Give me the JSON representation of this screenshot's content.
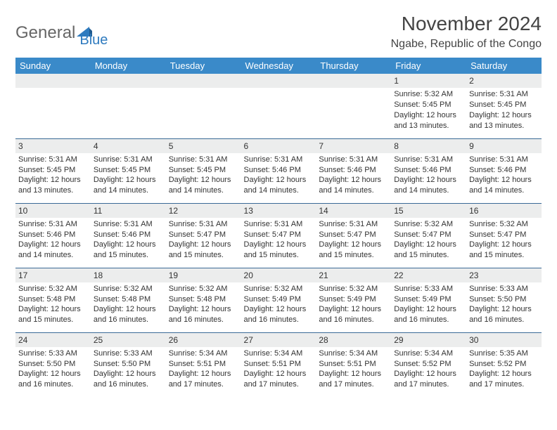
{
  "brand": {
    "part1": "General",
    "part2": "Blue"
  },
  "title": "November 2024",
  "location": "Ngabe, Republic of the Congo",
  "colors": {
    "header_bg": "#3a8ac9",
    "header_text": "#ffffff",
    "row_divider": "#3a6a96",
    "daynum_bg": "#eceded",
    "text": "#333333",
    "logo_blue": "#2f7bbf",
    "logo_gray": "#666666",
    "background": "#ffffff"
  },
  "typography": {
    "month_title_fontsize": 28,
    "location_fontsize": 16,
    "weekday_fontsize": 13,
    "body_fontsize": 11
  },
  "weekdays": [
    "Sunday",
    "Monday",
    "Tuesday",
    "Wednesday",
    "Thursday",
    "Friday",
    "Saturday"
  ],
  "weeks": [
    [
      null,
      null,
      null,
      null,
      null,
      {
        "n": "1",
        "sunrise": "Sunrise: 5:32 AM",
        "sunset": "Sunset: 5:45 PM",
        "daylight": "Daylight: 12 hours and 13 minutes."
      },
      {
        "n": "2",
        "sunrise": "Sunrise: 5:31 AM",
        "sunset": "Sunset: 5:45 PM",
        "daylight": "Daylight: 12 hours and 13 minutes."
      }
    ],
    [
      {
        "n": "3",
        "sunrise": "Sunrise: 5:31 AM",
        "sunset": "Sunset: 5:45 PM",
        "daylight": "Daylight: 12 hours and 13 minutes."
      },
      {
        "n": "4",
        "sunrise": "Sunrise: 5:31 AM",
        "sunset": "Sunset: 5:45 PM",
        "daylight": "Daylight: 12 hours and 14 minutes."
      },
      {
        "n": "5",
        "sunrise": "Sunrise: 5:31 AM",
        "sunset": "Sunset: 5:45 PM",
        "daylight": "Daylight: 12 hours and 14 minutes."
      },
      {
        "n": "6",
        "sunrise": "Sunrise: 5:31 AM",
        "sunset": "Sunset: 5:46 PM",
        "daylight": "Daylight: 12 hours and 14 minutes."
      },
      {
        "n": "7",
        "sunrise": "Sunrise: 5:31 AM",
        "sunset": "Sunset: 5:46 PM",
        "daylight": "Daylight: 12 hours and 14 minutes."
      },
      {
        "n": "8",
        "sunrise": "Sunrise: 5:31 AM",
        "sunset": "Sunset: 5:46 PM",
        "daylight": "Daylight: 12 hours and 14 minutes."
      },
      {
        "n": "9",
        "sunrise": "Sunrise: 5:31 AM",
        "sunset": "Sunset: 5:46 PM",
        "daylight": "Daylight: 12 hours and 14 minutes."
      }
    ],
    [
      {
        "n": "10",
        "sunrise": "Sunrise: 5:31 AM",
        "sunset": "Sunset: 5:46 PM",
        "daylight": "Daylight: 12 hours and 14 minutes."
      },
      {
        "n": "11",
        "sunrise": "Sunrise: 5:31 AM",
        "sunset": "Sunset: 5:46 PM",
        "daylight": "Daylight: 12 hours and 15 minutes."
      },
      {
        "n": "12",
        "sunrise": "Sunrise: 5:31 AM",
        "sunset": "Sunset: 5:47 PM",
        "daylight": "Daylight: 12 hours and 15 minutes."
      },
      {
        "n": "13",
        "sunrise": "Sunrise: 5:31 AM",
        "sunset": "Sunset: 5:47 PM",
        "daylight": "Daylight: 12 hours and 15 minutes."
      },
      {
        "n": "14",
        "sunrise": "Sunrise: 5:31 AM",
        "sunset": "Sunset: 5:47 PM",
        "daylight": "Daylight: 12 hours and 15 minutes."
      },
      {
        "n": "15",
        "sunrise": "Sunrise: 5:32 AM",
        "sunset": "Sunset: 5:47 PM",
        "daylight": "Daylight: 12 hours and 15 minutes."
      },
      {
        "n": "16",
        "sunrise": "Sunrise: 5:32 AM",
        "sunset": "Sunset: 5:47 PM",
        "daylight": "Daylight: 12 hours and 15 minutes."
      }
    ],
    [
      {
        "n": "17",
        "sunrise": "Sunrise: 5:32 AM",
        "sunset": "Sunset: 5:48 PM",
        "daylight": "Daylight: 12 hours and 15 minutes."
      },
      {
        "n": "18",
        "sunrise": "Sunrise: 5:32 AM",
        "sunset": "Sunset: 5:48 PM",
        "daylight": "Daylight: 12 hours and 16 minutes."
      },
      {
        "n": "19",
        "sunrise": "Sunrise: 5:32 AM",
        "sunset": "Sunset: 5:48 PM",
        "daylight": "Daylight: 12 hours and 16 minutes."
      },
      {
        "n": "20",
        "sunrise": "Sunrise: 5:32 AM",
        "sunset": "Sunset: 5:49 PM",
        "daylight": "Daylight: 12 hours and 16 minutes."
      },
      {
        "n": "21",
        "sunrise": "Sunrise: 5:32 AM",
        "sunset": "Sunset: 5:49 PM",
        "daylight": "Daylight: 12 hours and 16 minutes."
      },
      {
        "n": "22",
        "sunrise": "Sunrise: 5:33 AM",
        "sunset": "Sunset: 5:49 PM",
        "daylight": "Daylight: 12 hours and 16 minutes."
      },
      {
        "n": "23",
        "sunrise": "Sunrise: 5:33 AM",
        "sunset": "Sunset: 5:50 PM",
        "daylight": "Daylight: 12 hours and 16 minutes."
      }
    ],
    [
      {
        "n": "24",
        "sunrise": "Sunrise: 5:33 AM",
        "sunset": "Sunset: 5:50 PM",
        "daylight": "Daylight: 12 hours and 16 minutes."
      },
      {
        "n": "25",
        "sunrise": "Sunrise: 5:33 AM",
        "sunset": "Sunset: 5:50 PM",
        "daylight": "Daylight: 12 hours and 16 minutes."
      },
      {
        "n": "26",
        "sunrise": "Sunrise: 5:34 AM",
        "sunset": "Sunset: 5:51 PM",
        "daylight": "Daylight: 12 hours and 17 minutes."
      },
      {
        "n": "27",
        "sunrise": "Sunrise: 5:34 AM",
        "sunset": "Sunset: 5:51 PM",
        "daylight": "Daylight: 12 hours and 17 minutes."
      },
      {
        "n": "28",
        "sunrise": "Sunrise: 5:34 AM",
        "sunset": "Sunset: 5:51 PM",
        "daylight": "Daylight: 12 hours and 17 minutes."
      },
      {
        "n": "29",
        "sunrise": "Sunrise: 5:34 AM",
        "sunset": "Sunset: 5:52 PM",
        "daylight": "Daylight: 12 hours and 17 minutes."
      },
      {
        "n": "30",
        "sunrise": "Sunrise: 5:35 AM",
        "sunset": "Sunset: 5:52 PM",
        "daylight": "Daylight: 12 hours and 17 minutes."
      }
    ]
  ]
}
